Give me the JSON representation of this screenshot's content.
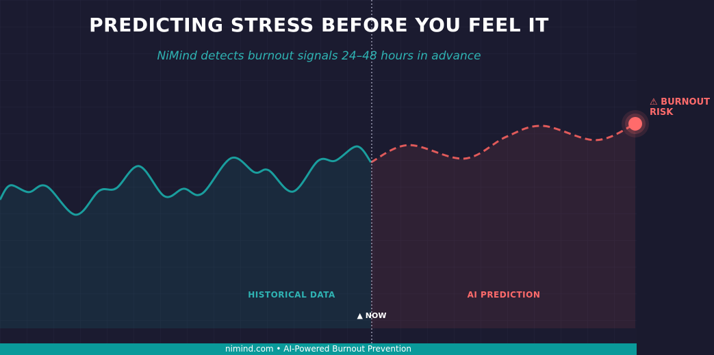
{
  "chart_data": {
    "type": "line",
    "title": "PREDICTING STRESS BEFORE YOU FEEL IT",
    "subtitle": "NiMind detects burnout signals 24–48 hours in advance",
    "annotations": {
      "historical": "HISTORICAL DATA",
      "prediction": "AI PREDICTION",
      "now": "▲ NOW",
      "risk": "⚠ BURNOUT RISK"
    },
    "footer": "nimind.com  •  AI-Powered Burnout Prevention",
    "x": [
      0,
      1.6,
      4.5,
      7.3,
      11.9,
      15.6,
      18.3,
      21.9,
      25.9,
      28.9,
      31.8,
      36.4,
      40.1,
      42.3,
      46.1,
      50.1,
      52.8,
      56.2,
      58.4,
      64.3,
      73.1,
      79.7,
      85.4,
      93.8,
      100
    ],
    "series": [
      {
        "name": "HISTORICAL DATA",
        "color": "#1a9e9e",
        "style": "solid",
        "values": [
          49.5,
          55,
          52.4,
          54.7,
          43.7,
          52.9,
          53.9,
          62.4,
          50.8,
          53.7,
          51.8,
          65.5,
          60,
          60.8,
          52.6,
          64.5,
          64.5,
          70,
          63.9,
          null,
          null,
          null,
          null,
          null,
          null
        ]
      },
      {
        "name": "AI PREDICTION",
        "color": "#e05a5a",
        "style": "dashed",
        "values": [
          null,
          null,
          null,
          null,
          null,
          null,
          null,
          null,
          null,
          null,
          null,
          null,
          null,
          null,
          null,
          null,
          null,
          null,
          63.9,
          70.5,
          65.3,
          73.7,
          77.9,
          72.4,
          78.7
        ]
      }
    ],
    "xlim": [
      0,
      100
    ],
    "ylim": [
      0,
      100
    ]
  }
}
